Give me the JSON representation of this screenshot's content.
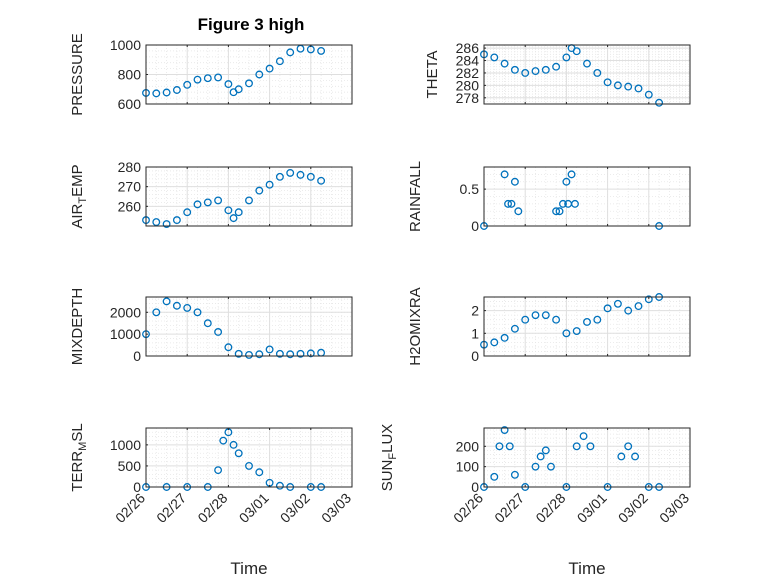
{
  "figure": {
    "title": "Figure 3 high",
    "marker_color": "#0072BD",
    "axis_color": "#262626",
    "grid_color": "#DFDFDF"
  },
  "chart_data": [
    {
      "type": "scatter",
      "panel": "pressure",
      "ylabel": "PRESSURE",
      "ylim": [
        600,
        1000
      ],
      "yticks": [
        600,
        800,
        1000
      ],
      "xlim": [
        "02/26",
        "03/03"
      ],
      "points": [
        [
          "02/26 00:00",
          675
        ],
        [
          "02/26 06:00",
          672
        ],
        [
          "02/26 12:00",
          678
        ],
        [
          "02/26 18:00",
          695
        ],
        [
          "02/27 00:00",
          730
        ],
        [
          "02/27 06:00",
          765
        ],
        [
          "02/27 12:00",
          775
        ],
        [
          "02/27 18:00",
          780
        ],
        [
          "02/28 00:00",
          735
        ],
        [
          "02/28 03:00",
          680
        ],
        [
          "02/28 06:00",
          700
        ],
        [
          "02/28 12:00",
          740
        ],
        [
          "02/28 18:00",
          800
        ],
        [
          "03/01 00:00",
          840
        ],
        [
          "03/01 06:00",
          890
        ],
        [
          "03/01 12:00",
          950
        ],
        [
          "03/01 18:00",
          975
        ],
        [
          "03/02 00:00",
          970
        ],
        [
          "03/02 06:00",
          960
        ]
      ]
    },
    {
      "type": "scatter",
      "panel": "theta",
      "ylabel": "THETA",
      "ylim": [
        277,
        286.5
      ],
      "yticks": [
        278,
        280,
        282,
        284,
        286
      ],
      "xlim": [
        "02/26",
        "03/03"
      ],
      "points": [
        [
          "02/26 00:00",
          285
        ],
        [
          "02/26 06:00",
          284.5
        ],
        [
          "02/26 12:00",
          283.5
        ],
        [
          "02/26 18:00",
          282.5
        ],
        [
          "02/27 00:00",
          282
        ],
        [
          "02/27 06:00",
          282.3
        ],
        [
          "02/27 12:00",
          282.5
        ],
        [
          "02/27 18:00",
          283
        ],
        [
          "02/28 00:00",
          284.5
        ],
        [
          "02/28 03:00",
          286
        ],
        [
          "02/28 06:00",
          285.5
        ],
        [
          "02/28 12:00",
          283.5
        ],
        [
          "02/28 18:00",
          282
        ],
        [
          "03/01 00:00",
          280.5
        ],
        [
          "03/01 06:00",
          280
        ],
        [
          "03/01 12:00",
          279.8
        ],
        [
          "03/01 18:00",
          279.5
        ],
        [
          "03/02 00:00",
          278.5
        ],
        [
          "03/02 06:00",
          277.2
        ]
      ]
    },
    {
      "type": "scatter",
      "panel": "air_temp",
      "ylabel": "AIR_TEMP",
      "ylim": [
        250,
        280
      ],
      "yticks": [
        260,
        270,
        280
      ],
      "xlim": [
        "02/26",
        "03/03"
      ],
      "points": [
        [
          "02/26 00:00",
          253
        ],
        [
          "02/26 06:00",
          252
        ],
        [
          "02/26 12:00",
          251
        ],
        [
          "02/26 18:00",
          253
        ],
        [
          "02/27 00:00",
          257
        ],
        [
          "02/27 06:00",
          261
        ],
        [
          "02/27 12:00",
          262
        ],
        [
          "02/27 18:00",
          263
        ],
        [
          "02/28 00:00",
          258
        ],
        [
          "02/28 03:00",
          254
        ],
        [
          "02/28 06:00",
          257
        ],
        [
          "02/28 12:00",
          263
        ],
        [
          "02/28 18:00",
          268
        ],
        [
          "03/01 00:00",
          271
        ],
        [
          "03/01 06:00",
          275
        ],
        [
          "03/01 12:00",
          277
        ],
        [
          "03/01 18:00",
          276
        ],
        [
          "03/02 00:00",
          275
        ],
        [
          "03/02 06:00",
          273
        ]
      ]
    },
    {
      "type": "scatter",
      "panel": "rainfall",
      "ylabel": "RAINFALL",
      "ylim": [
        0,
        0.8
      ],
      "yticks": [
        0,
        0.5
      ],
      "xlim": [
        "02/26",
        "03/03"
      ],
      "points": [
        [
          "02/26 00:00",
          0
        ],
        [
          "02/26 12:00",
          0.7
        ],
        [
          "02/26 14:00",
          0.3
        ],
        [
          "02/26 16:00",
          0.3
        ],
        [
          "02/26 18:00",
          0.6
        ],
        [
          "02/26 20:00",
          0.2
        ],
        [
          "02/27 18:00",
          0.2
        ],
        [
          "02/27 20:00",
          0.2
        ],
        [
          "02/27 22:00",
          0.3
        ],
        [
          "02/28 00:00",
          0.6
        ],
        [
          "02/28 01:00",
          0.3
        ],
        [
          "02/28 03:00",
          0.7
        ],
        [
          "02/28 05:00",
          0.3
        ],
        [
          "03/02 06:00",
          0
        ]
      ]
    },
    {
      "type": "scatter",
      "panel": "mixdepth",
      "ylabel": "MIXDEPTH",
      "ylim": [
        0,
        2700
      ],
      "yticks": [
        0,
        1000,
        2000
      ],
      "xlim": [
        "02/26",
        "03/03"
      ],
      "points": [
        [
          "02/26 00:00",
          1000
        ],
        [
          "02/26 06:00",
          2000
        ],
        [
          "02/26 12:00",
          2500
        ],
        [
          "02/26 18:00",
          2300
        ],
        [
          "02/27 00:00",
          2200
        ],
        [
          "02/27 06:00",
          2000
        ],
        [
          "02/27 12:00",
          1500
        ],
        [
          "02/27 18:00",
          1100
        ],
        [
          "02/28 00:00",
          400
        ],
        [
          "02/28 06:00",
          100
        ],
        [
          "02/28 12:00",
          50
        ],
        [
          "02/28 18:00",
          80
        ],
        [
          "03/01 00:00",
          300
        ],
        [
          "03/01 06:00",
          100
        ],
        [
          "03/01 12:00",
          80
        ],
        [
          "03/01 18:00",
          100
        ],
        [
          "03/02 00:00",
          120
        ],
        [
          "03/02 06:00",
          150
        ]
      ]
    },
    {
      "type": "scatter",
      "panel": "h2omixra",
      "ylabel": "H2OMIXRA",
      "ylim": [
        0,
        2.6
      ],
      "yticks": [
        0,
        1,
        2
      ],
      "xlim": [
        "02/26",
        "03/03"
      ],
      "points": [
        [
          "02/26 00:00",
          0.5
        ],
        [
          "02/26 06:00",
          0.6
        ],
        [
          "02/26 12:00",
          0.8
        ],
        [
          "02/26 18:00",
          1.2
        ],
        [
          "02/27 00:00",
          1.6
        ],
        [
          "02/27 06:00",
          1.8
        ],
        [
          "02/27 12:00",
          1.8
        ],
        [
          "02/27 18:00",
          1.6
        ],
        [
          "02/28 00:00",
          1
        ],
        [
          "02/28 06:00",
          1.1
        ],
        [
          "02/28 12:00",
          1.5
        ],
        [
          "02/28 18:00",
          1.6
        ],
        [
          "03/01 00:00",
          2.1
        ],
        [
          "03/01 06:00",
          2.3
        ],
        [
          "03/01 12:00",
          2
        ],
        [
          "03/01 18:00",
          2.2
        ],
        [
          "03/02 00:00",
          2.5
        ],
        [
          "03/02 06:00",
          2.6
        ]
      ]
    },
    {
      "type": "scatter",
      "panel": "terr_msl",
      "ylabel": "TERR_MSL",
      "ylim": [
        0,
        1400
      ],
      "yticks": [
        0,
        500,
        1000
      ],
      "xlim": [
        "02/26",
        "03/03"
      ],
      "points": [
        [
          "02/26 00:00",
          0
        ],
        [
          "02/26 12:00",
          0
        ],
        [
          "02/27 00:00",
          0
        ],
        [
          "02/27 12:00",
          0
        ],
        [
          "02/27 18:00",
          400
        ],
        [
          "02/27 21:00",
          1100
        ],
        [
          "02/28 00:00",
          1300
        ],
        [
          "02/28 03:00",
          1000
        ],
        [
          "02/28 06:00",
          800
        ],
        [
          "02/28 12:00",
          500
        ],
        [
          "02/28 18:00",
          350
        ],
        [
          "03/01 00:00",
          100
        ],
        [
          "03/01 06:00",
          30
        ],
        [
          "03/01 12:00",
          0
        ],
        [
          "03/02 00:00",
          0
        ],
        [
          "03/02 06:00",
          0
        ]
      ]
    },
    {
      "type": "scatter",
      "panel": "sun_flux",
      "ylabel": "SUN_FLUX",
      "ylim": [
        0,
        290
      ],
      "yticks": [
        0,
        100,
        200
      ],
      "xlim": [
        "02/26",
        "03/03"
      ],
      "points": [
        [
          "02/26 00:00",
          0
        ],
        [
          "02/26 06:00",
          50
        ],
        [
          "02/26 09:00",
          200
        ],
        [
          "02/26 12:00",
          280
        ],
        [
          "02/26 15:00",
          200
        ],
        [
          "02/26 18:00",
          60
        ],
        [
          "02/27 00:00",
          0
        ],
        [
          "02/27 06:00",
          100
        ],
        [
          "02/27 09:00",
          150
        ],
        [
          "02/27 12:00",
          180
        ],
        [
          "02/27 15:00",
          100
        ],
        [
          "02/28 00:00",
          0
        ],
        [
          "02/28 06:00",
          200
        ],
        [
          "02/28 10:00",
          250
        ],
        [
          "02/28 14:00",
          200
        ],
        [
          "03/01 00:00",
          0
        ],
        [
          "03/01 08:00",
          150
        ],
        [
          "03/01 12:00",
          200
        ],
        [
          "03/01 16:00",
          150
        ],
        [
          "03/02 00:00",
          0
        ],
        [
          "03/02 06:00",
          0
        ]
      ]
    }
  ],
  "xticks": [
    "02/26",
    "02/27",
    "02/28",
    "03/01",
    "03/02",
    "03/03"
  ],
  "xlabel": "Time"
}
